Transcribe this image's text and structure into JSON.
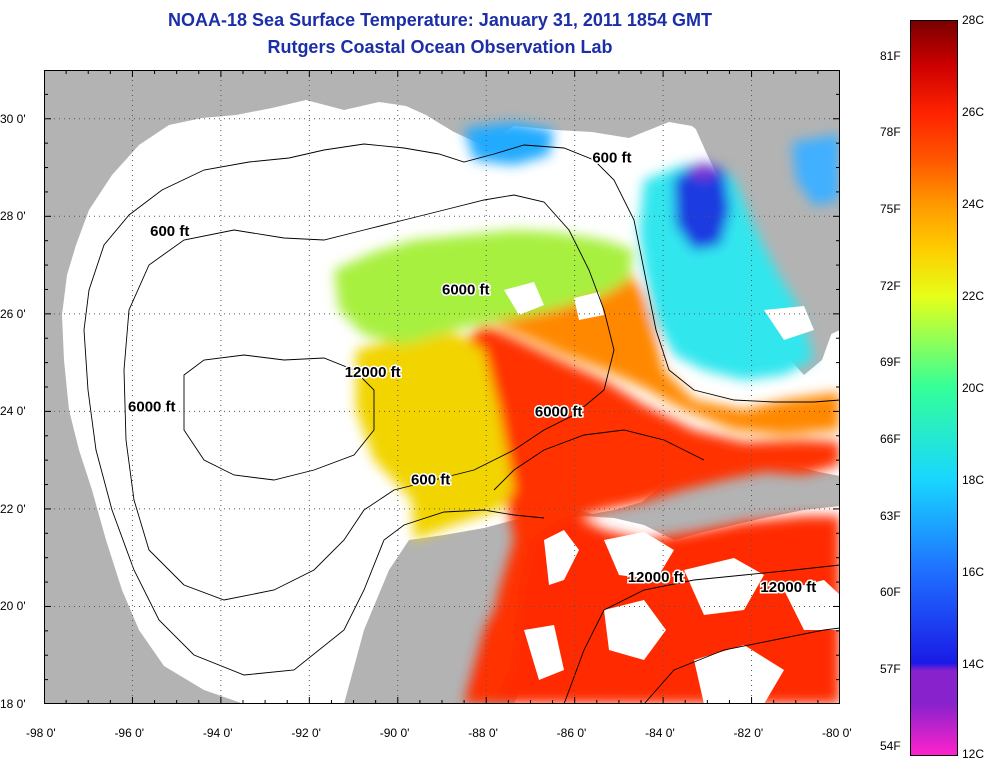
{
  "title_line1": "NOAA-18 Sea Surface Temperature:  January 31, 2011 1854 GMT",
  "title_line2": "Rutgers Coastal Ocean Observation Lab",
  "axes": {
    "lon_range": [
      -98,
      -80
    ],
    "lat_range": [
      18,
      31
    ],
    "lon_ticks": [
      "-98 0'",
      "-96 0'",
      "-94 0'",
      "-92 0'",
      "-90 0'",
      "-88 0'",
      "-86 0'",
      "-84 0'",
      "-82 0'",
      "-80 0'"
    ],
    "lat_ticks": [
      "18 0'",
      "20 0'",
      "22 0'",
      "24 0'",
      "26 0'",
      "28 0'",
      "30 0'"
    ]
  },
  "contour_labels": [
    {
      "text": "600 ft",
      "lon": -85.6,
      "lat": 29.1
    },
    {
      "text": "600 ft",
      "lon": -95.6,
      "lat": 27.6
    },
    {
      "text": "6000 ft",
      "lon": -89.0,
      "lat": 26.4
    },
    {
      "text": "12000 ft",
      "lon": -91.2,
      "lat": 24.7
    },
    {
      "text": "6000 ft",
      "lon": -96.1,
      "lat": 24.0
    },
    {
      "text": "6000 ft",
      "lon": -86.9,
      "lat": 23.9
    },
    {
      "text": "600 ft",
      "lon": -89.7,
      "lat": 22.5
    },
    {
      "text": "12000 ft",
      "lon": -84.8,
      "lat": 20.5
    },
    {
      "text": "12000 ft",
      "lon": -81.8,
      "lat": 20.3
    }
  ],
  "colorbar": {
    "range_c": [
      12,
      28
    ],
    "celsius_labels": [
      "28C",
      "26C",
      "24C",
      "22C",
      "20C",
      "18C",
      "16C",
      "14C",
      "12C"
    ],
    "fahrenheit_labels": [
      "81F",
      "78F",
      "75F",
      "72F",
      "69F",
      "66F",
      "63F",
      "60F",
      "57F",
      "54F"
    ],
    "colors": {
      "c12": "#ff22cc",
      "c13": "#8822cc",
      "c14": "#1a1ae6",
      "c16": "#1f6fff",
      "c18": "#19d6ff",
      "c20": "#33ff99",
      "c22": "#e6ff19",
      "c23": "#ffcc00",
      "c24": "#ff9900",
      "c25": "#ff5500",
      "c26": "#ff2200",
      "c27": "#cc0000",
      "c28": "#7a0000"
    }
  },
  "map_colors": {
    "land": "#b3b3b3",
    "cloud": "#ffffff"
  }
}
